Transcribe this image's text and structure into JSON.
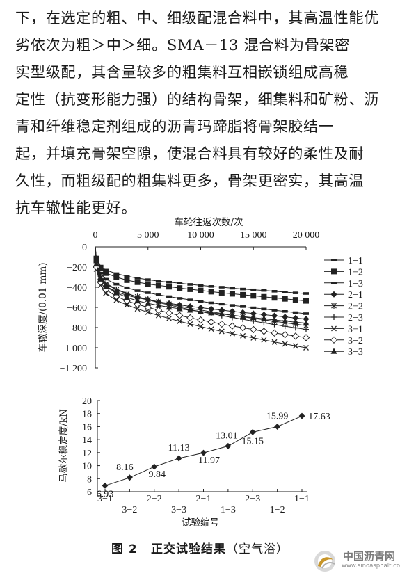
{
  "paragraph": {
    "lines": [
      "下，在选定的粗、中、细级配混合料中，其高温性能优",
      "劣依次为粗＞中＞细。SMA－13 混合料为骨架密",
      "实型级配，其含量较多的粗集料互相嵌锁组成高稳",
      "定性（抗变形能力强）的结构骨架，细集料和矿粉、沥",
      "青和纤维稳定剂组成的沥青玛蹄脂将骨架胶结一",
      "起，并填充骨架空隙，使混合料具有较好的柔性及耐",
      "久性，而粗级配的粗集料更多，骨架更密实，其高温",
      "抗车辙性能更好。"
    ]
  },
  "figure": {
    "caption_number": "图 2",
    "caption_title": "正交试验结果",
    "caption_suffix": "（空气浴）"
  },
  "watermark": {
    "text": "中国沥青网",
    "url": "www.sinoasphalt.com"
  },
  "chart_data": [
    {
      "type": "line",
      "xlabel": "车轮往返次数/次",
      "ylabel": "车辙深度/(0.01 mm)",
      "xlim": [
        0,
        20000
      ],
      "ylim": [
        -1200,
        0
      ],
      "x_ticks": [
        0,
        5000,
        10000,
        15000,
        20000
      ],
      "x_tick_labels": [
        "0",
        "5 000",
        "10 000",
        "15 000",
        "20 000"
      ],
      "y_ticks": [
        0,
        -200,
        -400,
        -600,
        -800,
        -1000,
        -1200
      ],
      "y_tick_labels": [
        "0",
        "−200",
        "−400",
        "−600",
        "−800",
        "−1 000",
        "−1 200"
      ],
      "x_axis_position": "top",
      "legend_position": "right",
      "x": [
        0,
        100,
        500,
        1000,
        2000,
        3000,
        4000,
        5000,
        6000,
        7000,
        8000,
        9000,
        10000,
        11000,
        12000,
        13000,
        14000,
        15000,
        16000,
        17000,
        18000,
        19000,
        20000
      ],
      "series": [
        {
          "name": "1−1",
          "marker": "bar",
          "values": [
            0,
            -100,
            -190,
            -230,
            -265,
            -290,
            -310,
            -325,
            -340,
            -350,
            -360,
            -372,
            -382,
            -392,
            -400,
            -410,
            -418,
            -426,
            -432,
            -440,
            -448,
            -456,
            -462
          ]
        },
        {
          "name": "1−2",
          "marker": "square",
          "values": [
            0,
            -120,
            -210,
            -260,
            -300,
            -330,
            -350,
            -368,
            -382,
            -395,
            -408,
            -420,
            -432,
            -444,
            -455,
            -465,
            -475,
            -485,
            -495,
            -505,
            -515,
            -525,
            -535
          ]
        },
        {
          "name": "1−3",
          "marker": "bar",
          "values": [
            0,
            -150,
            -260,
            -320,
            -370,
            -405,
            -435,
            -455,
            -475,
            -493,
            -510,
            -525,
            -540,
            -555,
            -568,
            -580,
            -592,
            -604,
            -616,
            -628,
            -640,
            -652,
            -662
          ]
        },
        {
          "name": "2−1",
          "marker": "diamond",
          "values": [
            0,
            -190,
            -320,
            -390,
            -445,
            -480,
            -505,
            -525,
            -545,
            -560,
            -575,
            -590,
            -603,
            -615,
            -627,
            -639,
            -650,
            -661,
            -672,
            -683,
            -694,
            -705,
            -715
          ]
        },
        {
          "name": "2−2",
          "marker": "star",
          "values": [
            0,
            -170,
            -300,
            -370,
            -425,
            -465,
            -495,
            -520,
            -545,
            -567,
            -588,
            -608,
            -626,
            -644,
            -661,
            -677,
            -693,
            -708,
            -723,
            -738,
            -752,
            -766,
            -780
          ]
        },
        {
          "name": "2−3",
          "marker": "plus",
          "values": [
            0,
            -150,
            -290,
            -360,
            -420,
            -460,
            -495,
            -525,
            -552,
            -576,
            -600,
            -622,
            -642,
            -662,
            -681,
            -700,
            -718,
            -736,
            -753,
            -770,
            -787,
            -803,
            -818
          ]
        },
        {
          "name": "3−1",
          "marker": "cross",
          "values": [
            0,
            -220,
            -380,
            -460,
            -530,
            -575,
            -615,
            -648,
            -680,
            -710,
            -738,
            -765,
            -790,
            -815,
            -838,
            -860,
            -882,
            -903,
            -923,
            -943,
            -962,
            -982,
            -1000
          ]
        },
        {
          "name": "3−2",
          "marker": "open-diamond",
          "values": [
            0,
            -200,
            -350,
            -425,
            -490,
            -535,
            -570,
            -600,
            -628,
            -655,
            -680,
            -703,
            -725,
            -745,
            -765,
            -784,
            -802,
            -820,
            -837,
            -854,
            -870,
            -885,
            -900
          ]
        },
        {
          "name": "3−3",
          "marker": "triangle",
          "values": [
            0,
            -170,
            -320,
            -395,
            -455,
            -500,
            -535,
            -560,
            -580,
            -598,
            -614,
            -628,
            -641,
            -654,
            -666,
            -678,
            -690,
            -702,
            -713,
            -724,
            -735,
            -746,
            -756
          ]
        }
      ]
    },
    {
      "type": "line",
      "xlabel": "试验编号",
      "ylabel": "马歇尔稳定度/kN",
      "ylim": [
        6,
        20
      ],
      "y_ticks": [
        6,
        8,
        10,
        12,
        14,
        16,
        18,
        20
      ],
      "categories": [
        "3−1",
        "3−2",
        "2−2",
        "3−3",
        "2−1",
        "1−3",
        "2−3",
        "1−2",
        "1−1"
      ],
      "values": [
        6.93,
        8.16,
        9.84,
        11.13,
        11.97,
        13.01,
        15.15,
        15.99,
        17.63
      ],
      "data_labels": [
        "6.93",
        "8.16",
        "9.84",
        "11.13",
        "11.97",
        "13.01",
        "15.15",
        "15.99",
        "17.63"
      ],
      "marker": "diamond"
    }
  ]
}
